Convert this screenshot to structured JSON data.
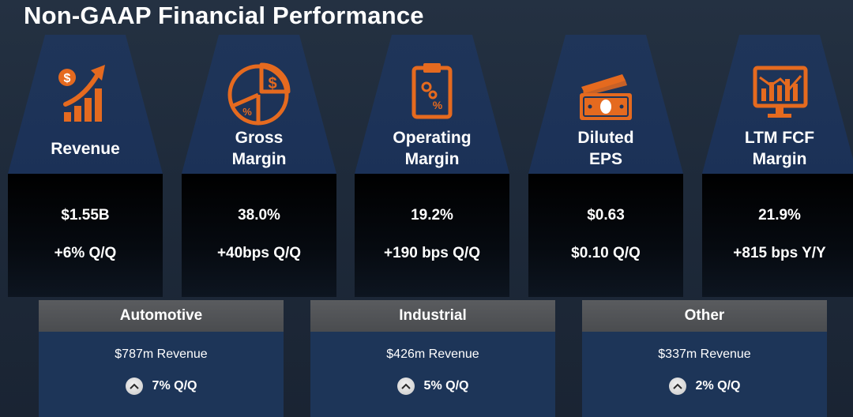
{
  "page": {
    "title": "Non-GAAP Financial Performance"
  },
  "colors": {
    "accent": "#e56a1f",
    "panel": "#1d3558",
    "segment_header": "#535558"
  },
  "metrics": [
    {
      "icon": "revenue-growth-icon",
      "label": "Revenue",
      "value": "$1.55B",
      "change": "+6% Q/Q"
    },
    {
      "icon": "pie-chart-icon",
      "label": "Gross\nMargin",
      "value": "38.0%",
      "change": "+40bps Q/Q"
    },
    {
      "icon": "clipboard-percent-icon",
      "label": "Operating\nMargin",
      "value": "19.2%",
      "change": "+190 bps Q/Q"
    },
    {
      "icon": "cash-icon",
      "label": "Diluted\nEPS",
      "value": "$0.63",
      "change": "$0.10 Q/Q"
    },
    {
      "icon": "monitor-chart-icon",
      "label": "LTM FCF\nMargin",
      "value": "21.9%",
      "change": "+815 bps Y/Y"
    }
  ],
  "segments": [
    {
      "name": "Automotive",
      "revenue": "$787m Revenue",
      "growth": "7% Q/Q",
      "icon": "chevron-up-icon"
    },
    {
      "name": "Industrial",
      "revenue": "$426m Revenue",
      "growth": "5% Q/Q",
      "icon": "chevron-up-icon"
    },
    {
      "name": "Other",
      "revenue": "$337m Revenue",
      "growth": "2% Q/Q",
      "icon": "chevron-up-icon"
    }
  ]
}
